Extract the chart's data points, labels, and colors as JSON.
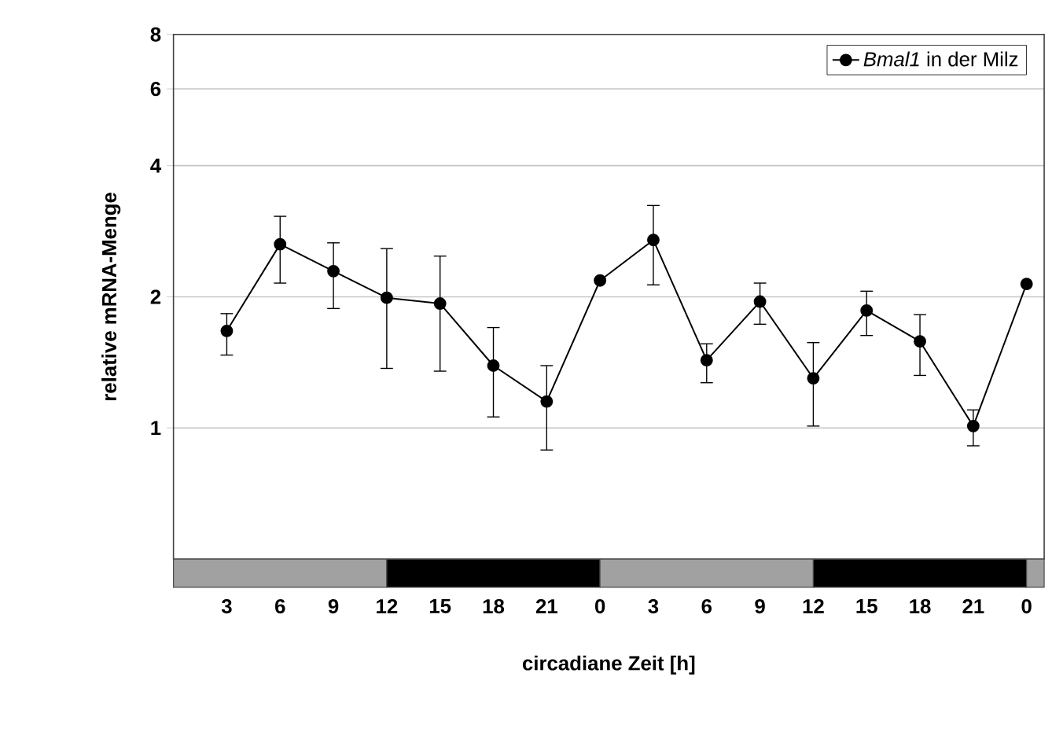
{
  "chart_data": {
    "type": "line",
    "xlabel": "circadiane Zeit [h]",
    "ylabel": "relative mRNA-Menge",
    "categories": [
      "3",
      "6",
      "9",
      "12",
      "15",
      "18",
      "21",
      "0",
      "3",
      "6",
      "9",
      "12",
      "15",
      "18",
      "21",
      "0"
    ],
    "series": [
      {
        "name": "*Bmal1* in der Milz",
        "color": "#000000",
        "values": [
          1.67,
          2.64,
          2.29,
          1.99,
          1.93,
          1.39,
          1.15,
          2.18,
          2.7,
          1.43,
          1.95,
          1.3,
          1.86,
          1.58,
          1.01,
          2.14
        ],
        "errors": [
          [
            1.47,
            1.83
          ],
          [
            2.15,
            3.06
          ],
          [
            1.88,
            2.66
          ],
          [
            1.37,
            2.58
          ],
          [
            1.35,
            2.48
          ],
          [
            1.06,
            1.7
          ],
          [
            0.89,
            1.39
          ],
          null,
          [
            2.13,
            3.24
          ],
          [
            1.27,
            1.56
          ],
          [
            1.73,
            2.15
          ],
          [
            1.01,
            1.57
          ],
          [
            1.63,
            2.06
          ],
          [
            1.32,
            1.82
          ],
          [
            0.91,
            1.1
          ],
          null
        ]
      }
    ],
    "ylim": [
      0.5,
      8
    ],
    "yticks": [
      1,
      2,
      4,
      6,
      8
    ],
    "log": "y",
    "grid": "y",
    "legend": "top right",
    "marker": "circle",
    "line_style": "solid"
  }
}
